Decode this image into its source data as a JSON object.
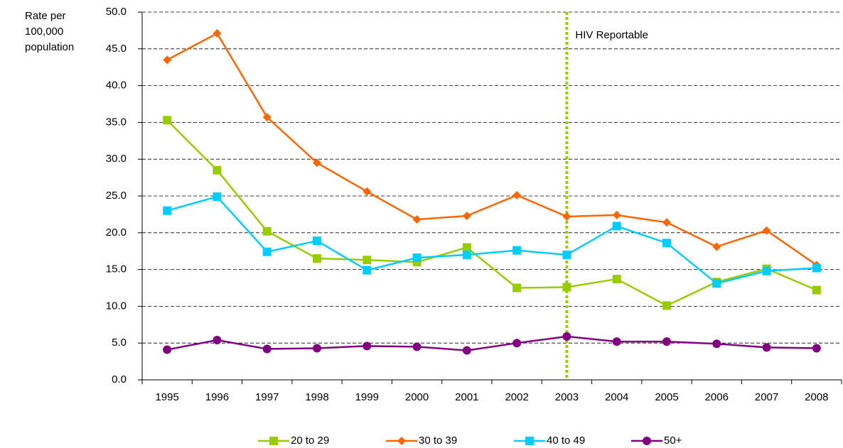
{
  "chart_data": {
    "type": "line",
    "ylabel": [
      "Rate per",
      "100,000",
      "population"
    ],
    "categories": [
      "1995",
      "1996",
      "1997",
      "1998",
      "1999",
      "2000",
      "2001",
      "2002",
      "2003",
      "2004",
      "2005",
      "2006",
      "2007",
      "2008"
    ],
    "series": [
      {
        "name": "20 to 29",
        "color": "#99cc00",
        "marker": "square",
        "values": [
          35.3,
          28.5,
          20.2,
          16.5,
          16.3,
          16.0,
          18.0,
          12.5,
          12.6,
          13.7,
          10.1,
          13.3,
          15.1,
          12.2
        ]
      },
      {
        "name": "30 to 39",
        "color": "#ff6600",
        "marker": "diamond",
        "values": [
          43.5,
          47.1,
          35.7,
          29.5,
          25.6,
          21.8,
          22.3,
          25.1,
          22.2,
          22.4,
          21.4,
          18.1,
          20.3,
          15.6
        ]
      },
      {
        "name": "40 to 49",
        "color": "#00ccff",
        "marker": "square",
        "values": [
          23.0,
          24.9,
          17.4,
          18.9,
          14.9,
          16.6,
          17.0,
          17.6,
          17.0,
          20.9,
          18.6,
          13.1,
          14.8,
          15.2
        ]
      },
      {
        "name": "50+",
        "color": "#800080",
        "marker": "circle",
        "values": [
          4.1,
          5.4,
          4.2,
          4.3,
          4.6,
          4.5,
          4.0,
          5.0,
          5.9,
          5.2,
          5.2,
          4.9,
          4.4,
          4.3
        ]
      }
    ],
    "ylim": [
      0,
      50
    ],
    "yticks": [
      {
        "value": 0,
        "label": "0.0"
      },
      {
        "value": 5,
        "label": "5.0"
      },
      {
        "value": 10,
        "label": "10.0"
      },
      {
        "value": 15,
        "label": "15.0"
      },
      {
        "value": 20,
        "label": "20.0"
      },
      {
        "value": 25,
        "label": "25.0"
      },
      {
        "value": 30,
        "label": "30.0"
      },
      {
        "value": 35,
        "label": "35.0"
      },
      {
        "value": 40,
        "label": "40.0"
      },
      {
        "value": 45,
        "label": "45.0"
      },
      {
        "value": 50,
        "label": "50.0"
      }
    ],
    "grid": true,
    "legend": "bottom",
    "annotation": {
      "text": "HIV Reportable",
      "category": 8,
      "color": "#99cc00"
    }
  }
}
